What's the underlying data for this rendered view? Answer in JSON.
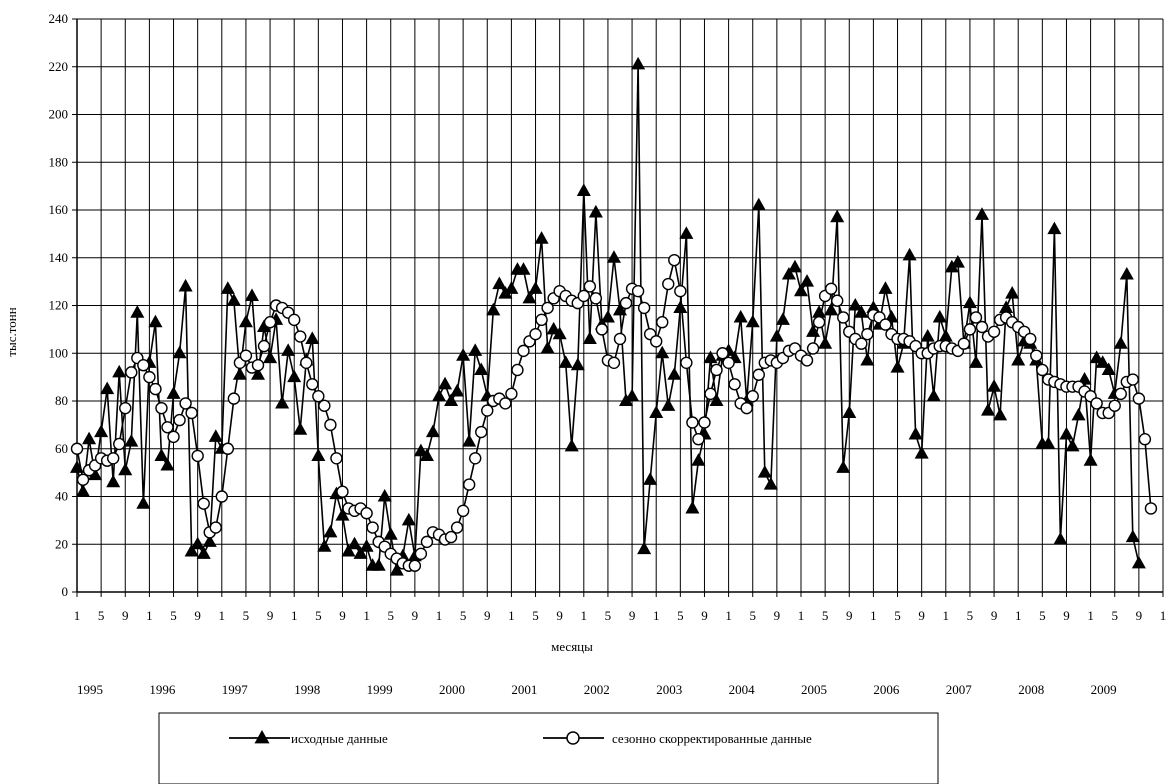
{
  "chart_data": {
    "type": "line",
    "title": "",
    "ylabel": "тыс.тонн",
    "xlabel": "месяцы",
    "ylim": [
      0,
      240
    ],
    "y_ticks": [
      0,
      20,
      40,
      60,
      80,
      100,
      120,
      140,
      160,
      180,
      200,
      220,
      240
    ],
    "x_month_ticks": [
      "1",
      "5",
      "9",
      "1",
      "5",
      "9",
      "1",
      "5",
      "9",
      "1",
      "5",
      "9",
      "1",
      "5",
      "9",
      "1",
      "5",
      "9",
      "1",
      "5",
      "9",
      "1",
      "5",
      "9",
      "1",
      "5",
      "9",
      "1",
      "5",
      "9",
      "1",
      "5",
      "9",
      "1",
      "5",
      "9",
      "1",
      "5",
      "9",
      "1",
      "5",
      "9",
      "1",
      "5",
      "9",
      "1",
      "5",
      "9"
    ],
    "years": [
      "1995",
      "1996",
      "1997",
      "1998",
      "1999",
      "2000",
      "2001",
      "2002",
      "2003",
      "2004",
      "2005",
      "2006",
      "2007",
      "2008",
      "2009"
    ],
    "grid": true,
    "legend_position": "bottom",
    "series": [
      {
        "name": "исходные данные",
        "marker": "triangle",
        "values": [
          52,
          42,
          64,
          49,
          67,
          85,
          46,
          92,
          51,
          63,
          117,
          37,
          96,
          113,
          57,
          53,
          83,
          100,
          128,
          17,
          20,
          16,
          21,
          65,
          60,
          127,
          122,
          91,
          113,
          124,
          91,
          111,
          98,
          114,
          79,
          101,
          90,
          68,
          97,
          106,
          57,
          19,
          25,
          41,
          32,
          17,
          20,
          16,
          19,
          11,
          11,
          40,
          24,
          9,
          15,
          30,
          15,
          59,
          57,
          67,
          82,
          87,
          80,
          84,
          99,
          63,
          101,
          93,
          82,
          118,
          129,
          125,
          127,
          135,
          135,
          123,
          127,
          148,
          102,
          110,
          108,
          96,
          61,
          95,
          168,
          106,
          159,
          112,
          115,
          140,
          118,
          80,
          82,
          221,
          18,
          47,
          75,
          100,
          78,
          91,
          119,
          150,
          35,
          55,
          66,
          98,
          80,
          99,
          101,
          98,
          115,
          80,
          113,
          162,
          50,
          45,
          107,
          114,
          133,
          136,
          126,
          130,
          109,
          117,
          104,
          118,
          157,
          52,
          75,
          120,
          117,
          97,
          119,
          112,
          127,
          115,
          94,
          104,
          141,
          66,
          58,
          107,
          82,
          115,
          107,
          136,
          138,
          104,
          121,
          96,
          158,
          76,
          86,
          74,
          119,
          125,
          97,
          105,
          104,
          97,
          62,
          62,
          152,
          22,
          66,
          61,
          74,
          89,
          55,
          98,
          96,
          93,
          83,
          104,
          133,
          23,
          12
        ]
      },
      {
        "name": "сезонно скорректированные данные",
        "marker": "circle",
        "values": [
          60,
          47,
          51,
          53,
          56,
          55,
          56,
          62,
          77,
          92,
          98,
          95,
          90,
          85,
          77,
          69,
          65,
          72,
          79,
          75,
          57,
          37,
          25,
          27,
          40,
          60,
          81,
          96,
          99,
          94,
          95,
          103,
          113,
          120,
          119,
          117,
          114,
          107,
          96,
          87,
          82,
          78,
          70,
          56,
          42,
          35,
          34,
          35,
          33,
          27,
          21,
          19,
          16,
          14,
          12,
          11,
          11,
          16,
          21,
          25,
          24,
          22,
          23,
          27,
          34,
          45,
          56,
          67,
          76,
          80,
          81,
          79,
          83,
          93,
          101,
          105,
          108,
          114,
          119,
          123,
          126,
          124,
          122,
          121,
          124,
          128,
          123,
          110,
          97,
          96,
          106,
          121,
          127,
          126,
          119,
          108,
          105,
          113,
          129,
          139,
          126,
          96,
          71,
          64,
          71,
          83,
          93,
          100,
          96,
          87,
          79,
          77,
          82,
          91,
          96,
          97,
          96,
          98,
          101,
          102,
          99,
          97,
          102,
          113,
          124,
          127,
          122,
          115,
          109,
          106,
          104,
          108,
          116,
          115,
          112,
          108,
          106,
          106,
          105,
          103,
          100,
          100,
          102,
          103,
          103,
          102,
          101,
          104,
          110,
          115,
          111,
          107,
          109,
          114,
          115,
          113,
          111,
          109,
          106,
          99,
          93,
          89,
          88,
          87,
          86,
          86,
          86,
          84,
          82,
          79,
          75,
          75,
          78,
          83,
          88,
          89,
          81,
          64,
          35
        ]
      }
    ]
  }
}
